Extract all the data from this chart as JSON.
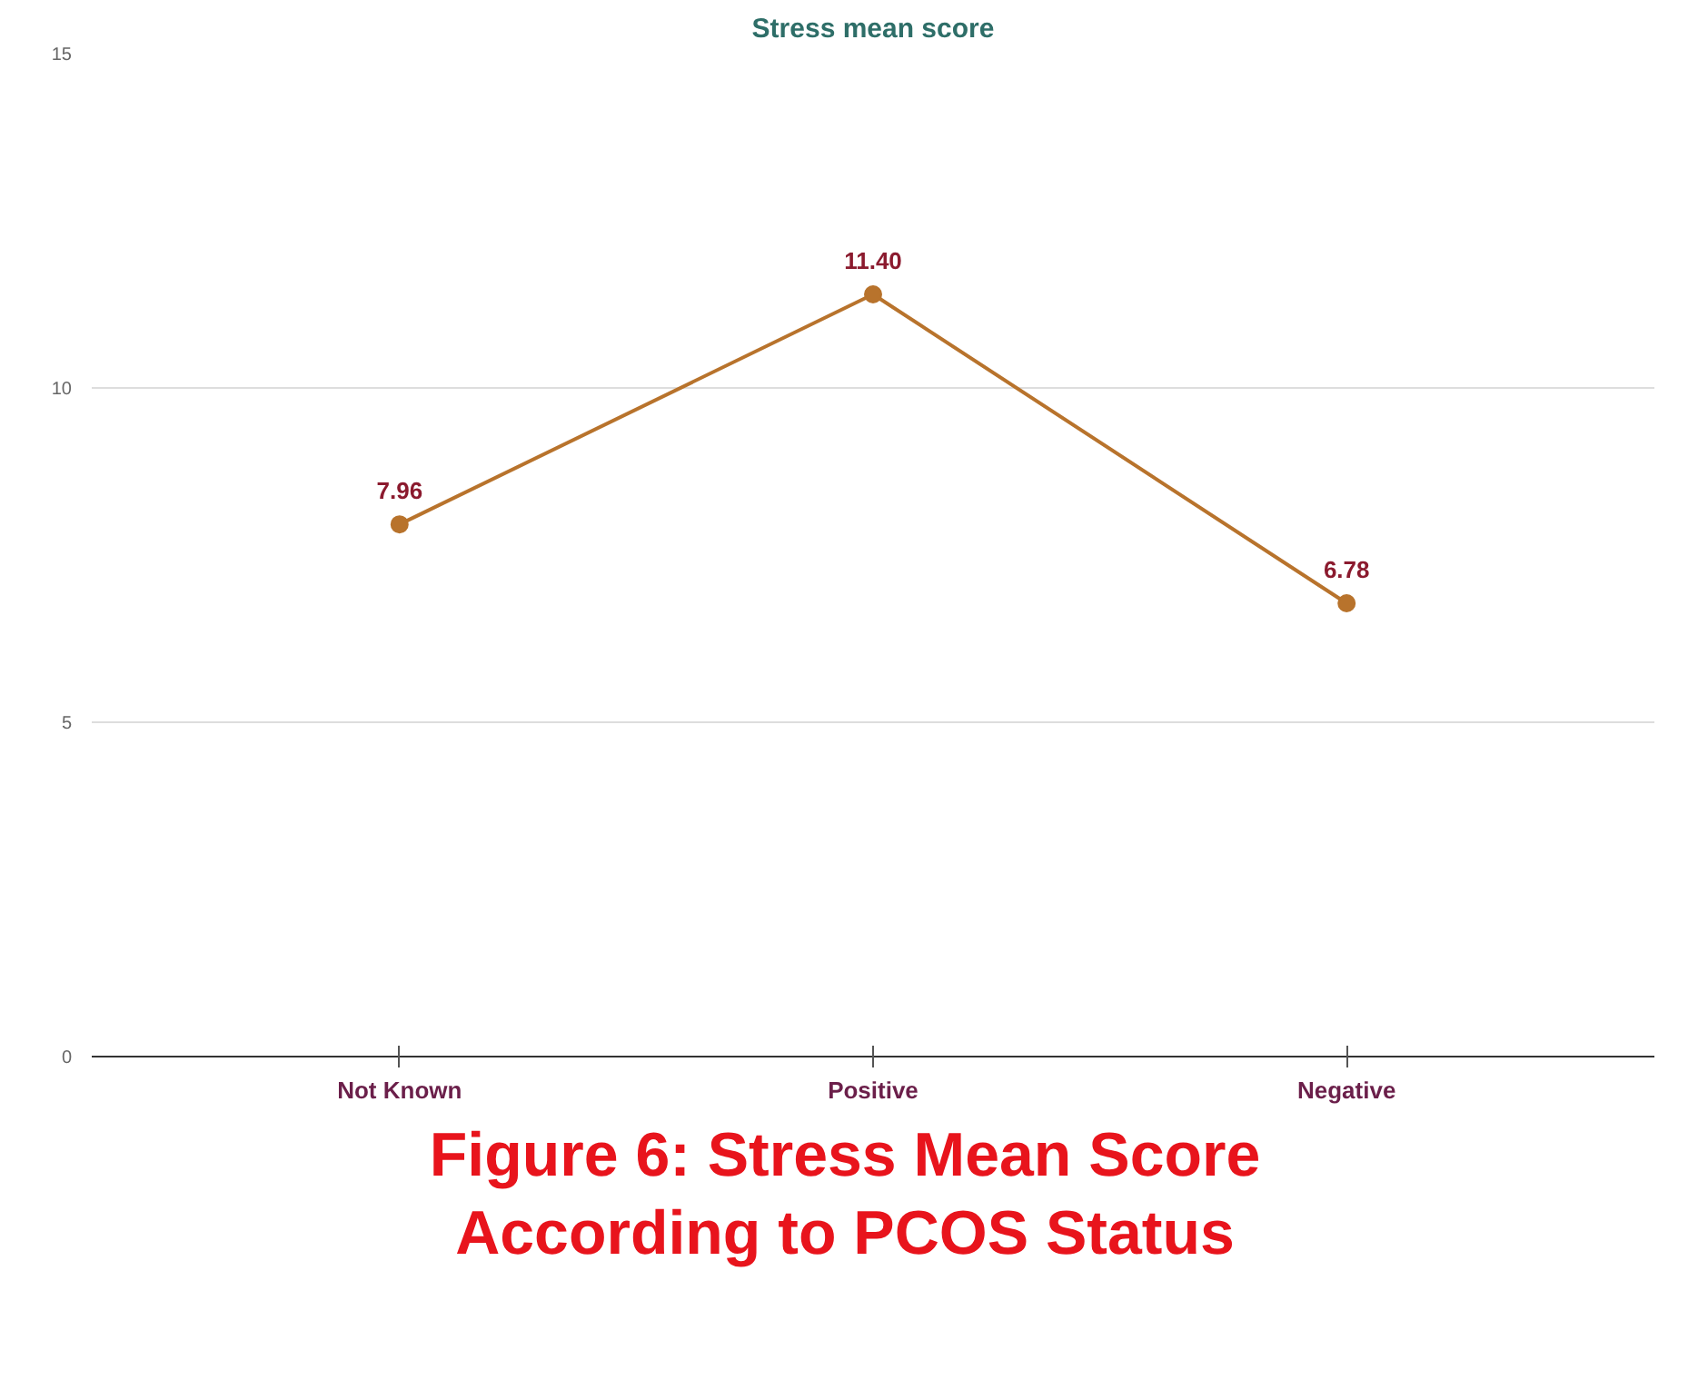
{
  "chart_data": {
    "type": "line",
    "title": "Stress mean score",
    "categories": [
      "Not Known",
      "Positive",
      "Negative"
    ],
    "series": [
      {
        "color": "#b8732c",
        "values": [
          7.96,
          11.4,
          6.78
        ]
      }
    ],
    "value_labels": [
      "7.96",
      "11.40",
      "6.78"
    ],
    "ylim": [
      0,
      15
    ],
    "yticks": [
      0,
      5,
      10,
      15
    ],
    "grid": "y",
    "marker": "circle",
    "line_style": "solid",
    "annotations": [
      "Figure 6: Stress Mean Score According to PCOS Status"
    ]
  }
}
